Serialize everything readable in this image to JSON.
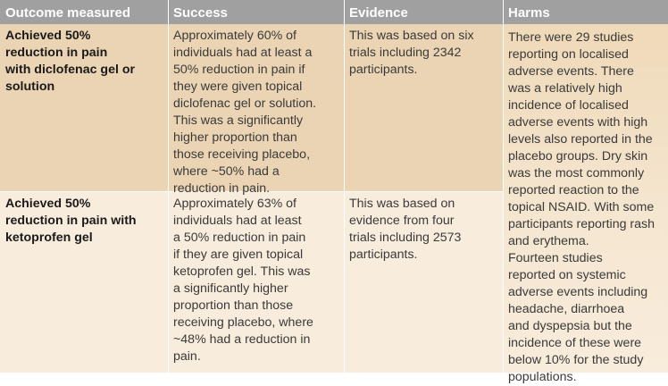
{
  "headers": [
    "Outcome measured",
    "Success",
    "Evidence",
    "Harms"
  ],
  "rows": [
    {
      "outcome": "Achieved 50%\nreduction in pain\nwith diclofenac gel or\nsolution",
      "success": "Approximately 60% of\nindividuals had at least a\n50% reduction in pain if\nthey were given topical\ndiclofenac gel or solution.\nThis was a significantly\nhigher proportion than\nthose receiving placebo,\nwhere ~50% had a\nreduction in pain.",
      "evidence": "This was based on six\ntrials including 2342\nparticipants."
    },
    {
      "outcome": "Achieved 50%\nreduction in pain with\nketoprofen gel",
      "success": "Approximately 63% of\nindividuals had at least\na 50% reduction in pain\nif they are given topical\nketoprofen gel. This was\na significantly higher\nproportion than those\nreceiving placebo, where\n~48% had a reduction in\npain.",
      "evidence": "This was based on\nevidence from four\ntrials including 2573\nparticipants."
    }
  ],
  "harms": "There were 29 studies\nreporting on localised\nadverse events. There\nwas a relatively high\nincidence of localised\nadverse events with high\nlevels also reported in the\nplacebo groups. Dry skin\nwas the most commonly\nreported reaction to the\ntopical NSAID. With some\nparticipants reporting rash\nand erythema.\nFourteen studies\nreported on systemic\nadverse events including\nheadache, diarrhoea\nand dyspepsia but the\nincidence of these were\nbelow 10% for the study\npopulations.",
  "colors": {
    "header": "#a0a0a0",
    "row_dark": "#ebd4b3",
    "row_light": "#f8ecdc"
  }
}
